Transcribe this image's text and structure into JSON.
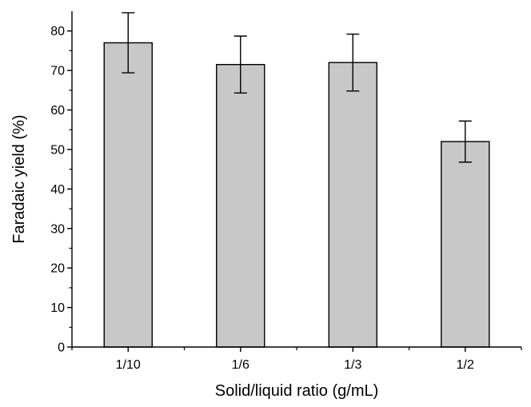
{
  "chart_data": {
    "type": "bar",
    "title": "",
    "xlabel": "Solid/liquid ratio (g/mL)",
    "ylabel": "Faradaic yield (%)",
    "categories": [
      "1/10",
      "1/6",
      "1/3",
      "1/2"
    ],
    "values": [
      77,
      71.5,
      72,
      52
    ],
    "error": [
      7.6,
      7.2,
      7.2,
      5.2
    ],
    "ylim": [
      0,
      85
    ],
    "yticks": [
      0,
      10,
      20,
      30,
      40,
      50,
      60,
      70,
      80
    ],
    "ytick_labels": [
      "0",
      "10",
      "20",
      "30",
      "40",
      "50",
      "60",
      "70",
      "80"
    ],
    "minor_y_step": 5,
    "grid": false,
    "legend": "none",
    "bar_color": "#c8c8c8",
    "edge_color": "#000000"
  }
}
